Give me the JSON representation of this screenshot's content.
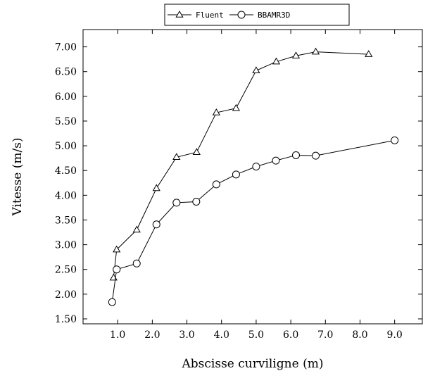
{
  "chart_data": {
    "type": "line",
    "xlabel": "Abscisse curviligne (m)",
    "ylabel": "Vitesse (m/s)",
    "xlim": [
      0.0,
      9.8
    ],
    "ylim": [
      1.4,
      7.35
    ],
    "xticks": [
      1.0,
      2.0,
      3.0,
      4.0,
      5.0,
      6.0,
      7.0,
      8.0,
      9.0
    ],
    "xtick_labels": [
      "1.0",
      "2.0",
      "3.0",
      "4.0",
      "5.0",
      "6.0",
      "7.0",
      "8.0",
      "9.0"
    ],
    "yticks": [
      1.5,
      2.0,
      2.5,
      3.0,
      3.5,
      4.0,
      4.5,
      5.0,
      5.5,
      6.0,
      6.5,
      7.0
    ],
    "ytick_labels": [
      "1.50",
      "2.00",
      "2.50",
      "3.00",
      "3.50",
      "4.00",
      "4.50",
      "5.00",
      "5.50",
      "6.00",
      "6.50",
      "7.00"
    ],
    "grid": false,
    "legend": "top-center",
    "series": [
      {
        "name": "Fluent",
        "marker": "triangle",
        "x": [
          0.88,
          0.97,
          1.55,
          2.12,
          2.7,
          3.28,
          3.85,
          4.42,
          5.0,
          5.58,
          6.15,
          6.72,
          8.25
        ],
        "y": [
          2.33,
          2.9,
          3.3,
          4.14,
          4.77,
          4.87,
          5.67,
          5.76,
          6.52,
          6.7,
          6.82,
          6.9,
          6.85
        ]
      },
      {
        "name": "BBAMR3D",
        "marker": "circle",
        "x": [
          0.84,
          0.97,
          1.55,
          2.12,
          2.7,
          3.27,
          3.85,
          4.42,
          5.0,
          5.57,
          6.15,
          6.72,
          9.0
        ],
        "y": [
          1.84,
          2.5,
          2.62,
          3.41,
          3.85,
          3.87,
          4.22,
          4.42,
          4.58,
          4.7,
          4.81,
          4.8,
          5.11
        ]
      }
    ]
  }
}
